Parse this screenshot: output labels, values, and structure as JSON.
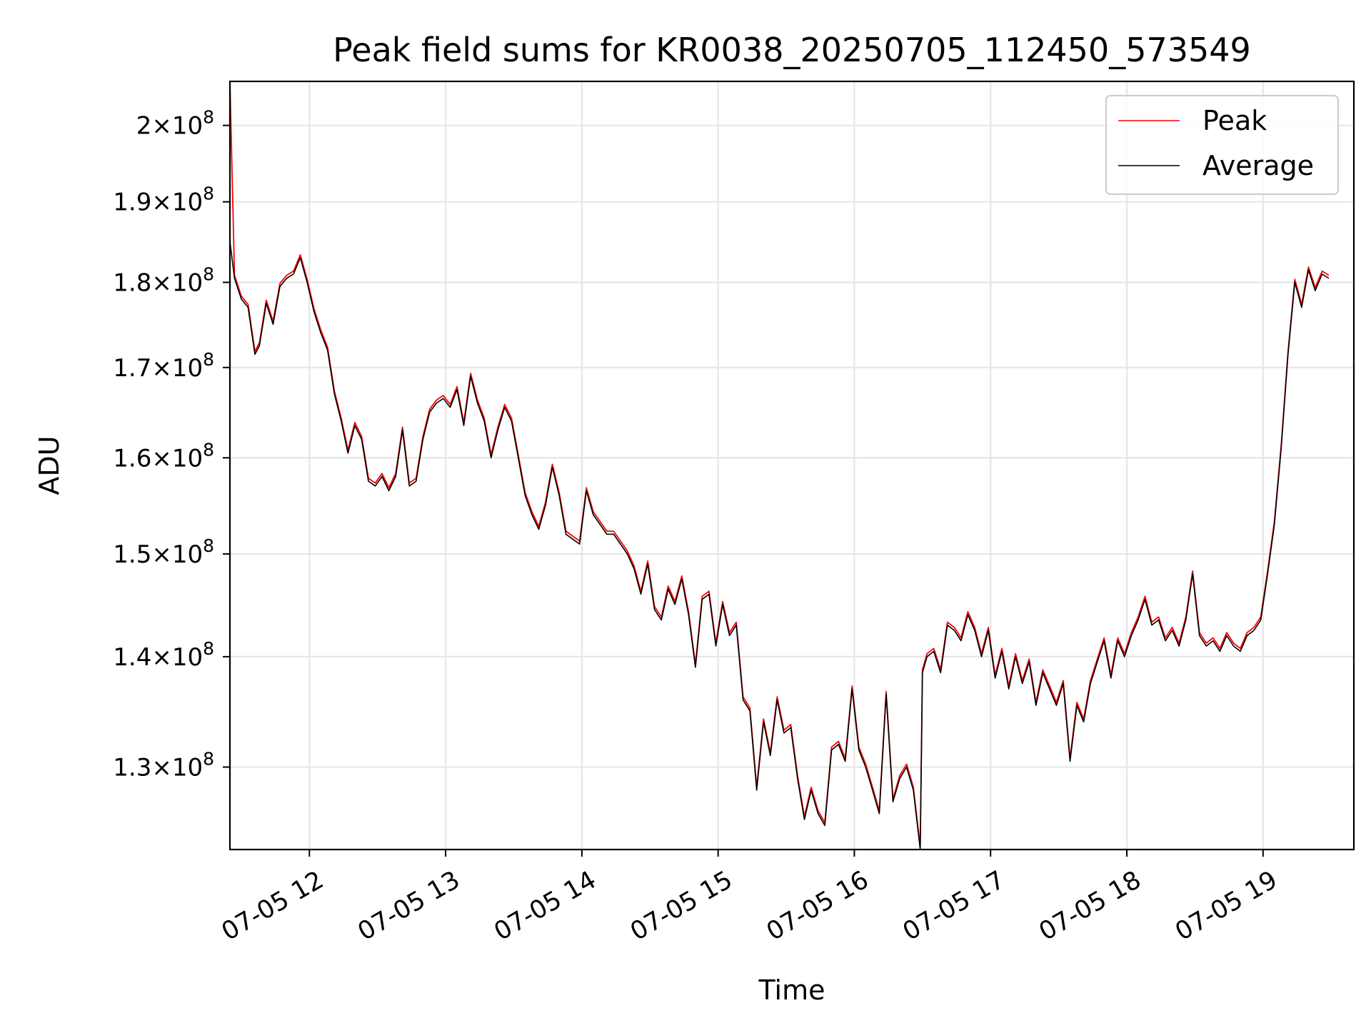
{
  "chart_data": {
    "type": "line",
    "title": "Peak field sums for KR0038_20250705_112450_573549",
    "xlabel": "Time",
    "ylabel": "ADU",
    "y_scale": "log",
    "ylim": [
      123000000,
      206000000
    ],
    "xlim": [
      "2025-07-05 11:25",
      "2025-07-05 19:40"
    ],
    "grid": true,
    "legend_position": "top-right",
    "x_ticks": [
      {
        "time": "2025-07-05 12:00",
        "label": "07-05 12"
      },
      {
        "time": "2025-07-05 13:00",
        "label": "07-05 13"
      },
      {
        "time": "2025-07-05 14:00",
        "label": "07-05 14"
      },
      {
        "time": "2025-07-05 15:00",
        "label": "07-05 15"
      },
      {
        "time": "2025-07-05 16:00",
        "label": "07-05 16"
      },
      {
        "time": "2025-07-05 17:00",
        "label": "07-05 17"
      },
      {
        "time": "2025-07-05 18:00",
        "label": "07-05 18"
      },
      {
        "time": "2025-07-05 19:00",
        "label": "07-05 19"
      }
    ],
    "y_ticks": [
      {
        "value": 130000000,
        "mantissa": "1.3",
        "exp": "8"
      },
      {
        "value": 140000000,
        "mantissa": "1.4",
        "exp": "8"
      },
      {
        "value": 150000000,
        "mantissa": "1.5",
        "exp": "8"
      },
      {
        "value": 160000000,
        "mantissa": "1.6",
        "exp": "8"
      },
      {
        "value": 170000000,
        "mantissa": "1.7",
        "exp": "8"
      },
      {
        "value": 180000000,
        "mantissa": "1.8",
        "exp": "8"
      },
      {
        "value": 190000000,
        "mantissa": "1.9",
        "exp": "8"
      },
      {
        "value": 200000000,
        "mantissa": "2",
        "exp": "8"
      }
    ],
    "series": [
      {
        "name": "Peak",
        "color": "#ff0000"
      },
      {
        "name": "Average",
        "color": "#000000"
      }
    ],
    "x": [
      "2025-07-05 11:25",
      "2025-07-05 11:27",
      "2025-07-05 11:30",
      "2025-07-05 11:33",
      "2025-07-05 11:36",
      "2025-07-05 11:38",
      "2025-07-05 11:41",
      "2025-07-05 11:44",
      "2025-07-05 11:47",
      "2025-07-05 11:50",
      "2025-07-05 11:53",
      "2025-07-05 11:56",
      "2025-07-05 11:59",
      "2025-07-05 12:02",
      "2025-07-05 12:05",
      "2025-07-05 12:08",
      "2025-07-05 12:11",
      "2025-07-05 12:14",
      "2025-07-05 12:17",
      "2025-07-05 12:20",
      "2025-07-05 12:23",
      "2025-07-05 12:26",
      "2025-07-05 12:29",
      "2025-07-05 12:32",
      "2025-07-05 12:35",
      "2025-07-05 12:38",
      "2025-07-05 12:41",
      "2025-07-05 12:44",
      "2025-07-05 12:47",
      "2025-07-05 12:50",
      "2025-07-05 12:53",
      "2025-07-05 12:56",
      "2025-07-05 12:59",
      "2025-07-05 13:02",
      "2025-07-05 13:05",
      "2025-07-05 13:08",
      "2025-07-05 13:11",
      "2025-07-05 13:14",
      "2025-07-05 13:17",
      "2025-07-05 13:20",
      "2025-07-05 13:23",
      "2025-07-05 13:26",
      "2025-07-05 13:29",
      "2025-07-05 13:32",
      "2025-07-05 13:35",
      "2025-07-05 13:38",
      "2025-07-05 13:41",
      "2025-07-05 13:44",
      "2025-07-05 13:47",
      "2025-07-05 13:50",
      "2025-07-05 13:53",
      "2025-07-05 13:56",
      "2025-07-05 13:59",
      "2025-07-05 14:02",
      "2025-07-05 14:05",
      "2025-07-05 14:08",
      "2025-07-05 14:11",
      "2025-07-05 14:14",
      "2025-07-05 14:17",
      "2025-07-05 14:20",
      "2025-07-05 14:23",
      "2025-07-05 14:26",
      "2025-07-05 14:29",
      "2025-07-05 14:32",
      "2025-07-05 14:35",
      "2025-07-05 14:38",
      "2025-07-05 14:41",
      "2025-07-05 14:44",
      "2025-07-05 14:47",
      "2025-07-05 14:50",
      "2025-07-05 14:53",
      "2025-07-05 14:56",
      "2025-07-05 14:59",
      "2025-07-05 15:02",
      "2025-07-05 15:05",
      "2025-07-05 15:08",
      "2025-07-05 15:11",
      "2025-07-05 15:14",
      "2025-07-05 15:17",
      "2025-07-05 15:20",
      "2025-07-05 15:23",
      "2025-07-05 15:26",
      "2025-07-05 15:29",
      "2025-07-05 15:32",
      "2025-07-05 15:35",
      "2025-07-05 15:38",
      "2025-07-05 15:41",
      "2025-07-05 15:44",
      "2025-07-05 15:47",
      "2025-07-05 15:50",
      "2025-07-05 15:53",
      "2025-07-05 15:56",
      "2025-07-05 15:59",
      "2025-07-05 16:02",
      "2025-07-05 16:05",
      "2025-07-05 16:08",
      "2025-07-05 16:11",
      "2025-07-05 16:14",
      "2025-07-05 16:17",
      "2025-07-05 16:20",
      "2025-07-05 16:23",
      "2025-07-05 16:26",
      "2025-07-05 16:29",
      "2025-07-05 16:30",
      "2025-07-05 16:32",
      "2025-07-05 16:35",
      "2025-07-05 16:38",
      "2025-07-05 16:41",
      "2025-07-05 16:44",
      "2025-07-05 16:47",
      "2025-07-05 16:50",
      "2025-07-05 16:53",
      "2025-07-05 16:56",
      "2025-07-05 16:59",
      "2025-07-05 17:02",
      "2025-07-05 17:05",
      "2025-07-05 17:08",
      "2025-07-05 17:11",
      "2025-07-05 17:14",
      "2025-07-05 17:17",
      "2025-07-05 17:20",
      "2025-07-05 17:23",
      "2025-07-05 17:26",
      "2025-07-05 17:29",
      "2025-07-05 17:32",
      "2025-07-05 17:35",
      "2025-07-05 17:38",
      "2025-07-05 17:41",
      "2025-07-05 17:44",
      "2025-07-05 17:47",
      "2025-07-05 17:50",
      "2025-07-05 17:53",
      "2025-07-05 17:56",
      "2025-07-05 17:59",
      "2025-07-05 18:02",
      "2025-07-05 18:05",
      "2025-07-05 18:08",
      "2025-07-05 18:11",
      "2025-07-05 18:14",
      "2025-07-05 18:17",
      "2025-07-05 18:20",
      "2025-07-05 18:23",
      "2025-07-05 18:26",
      "2025-07-05 18:29",
      "2025-07-05 18:32",
      "2025-07-05 18:35",
      "2025-07-05 18:38",
      "2025-07-05 18:41",
      "2025-07-05 18:44",
      "2025-07-05 18:47",
      "2025-07-05 18:50",
      "2025-07-05 18:53",
      "2025-07-05 18:56",
      "2025-07-05 18:59",
      "2025-07-05 19:02",
      "2025-07-05 19:05",
      "2025-07-05 19:08",
      "2025-07-05 19:11",
      "2025-07-05 19:14",
      "2025-07-05 19:17",
      "2025-07-05 19:20",
      "2025-07-05 19:23",
      "2025-07-05 19:26",
      "2025-07-05 19:29",
      "2025-07-05 19:32",
      "2025-07-05 19:35",
      "2025-07-05 19:38",
      "2025-07-05 19:40"
    ],
    "average_values": [
      185000000,
      180500000,
      178000000,
      177000000,
      171500000,
      172500000,
      177500000,
      175000000,
      179500000,
      180500000,
      181000000,
      183000000,
      180000000,
      176500000,
      174000000,
      172000000,
      167000000,
      164000000,
      160500000,
      163500000,
      162000000,
      157500000,
      157000000,
      158000000,
      156500000,
      158000000,
      163000000,
      157000000,
      157500000,
      162000000,
      165000000,
      166000000,
      166500000,
      165500000,
      167500000,
      163500000,
      169000000,
      166000000,
      164000000,
      160000000,
      163000000,
      165500000,
      164000000,
      160000000,
      156000000,
      154000000,
      152500000,
      155000000,
      159000000,
      156000000,
      152000000,
      151500000,
      151000000,
      156500000,
      154000000,
      153000000,
      152000000,
      152000000,
      151000000,
      150000000,
      148500000,
      146000000,
      149000000,
      144500000,
      143500000,
      146500000,
      145000000,
      147500000,
      144000000,
      139000000,
      145500000,
      146000000,
      141000000,
      145000000,
      142000000,
      143000000,
      136000000,
      135000000,
      128000000,
      134000000,
      131000000,
      136000000,
      133000000,
      133500000,
      129000000,
      125500000,
      128000000,
      126000000,
      125000000,
      131500000,
      132000000,
      130500000,
      137000000,
      131500000,
      130000000,
      128000000,
      126000000,
      136500000,
      127000000,
      129000000,
      130000000,
      128000000,
      123000000,
      138500000,
      140000000,
      140500000,
      138500000,
      143000000,
      142500000,
      141500000,
      144000000,
      142500000,
      140000000,
      142500000,
      138000000,
      140500000,
      137000000,
      140000000,
      137500000,
      139500000,
      135500000,
      138500000,
      137000000,
      135500000,
      137500000,
      130500000,
      135500000,
      134000000,
      137500000,
      139500000,
      141500000,
      138000000,
      141500000,
      140000000,
      142000000,
      143500000,
      145500000,
      143000000,
      143500000,
      141500000,
      142500000,
      141000000,
      143500000,
      148000000,
      142000000,
      141000000,
      141500000,
      140500000,
      142000000,
      141000000,
      140500000,
      142000000,
      142500000,
      143500000,
      148000000,
      153000000,
      161000000,
      171500000,
      180000000,
      177000000,
      181500000,
      179000000,
      181000000,
      180500000
    ]
  }
}
